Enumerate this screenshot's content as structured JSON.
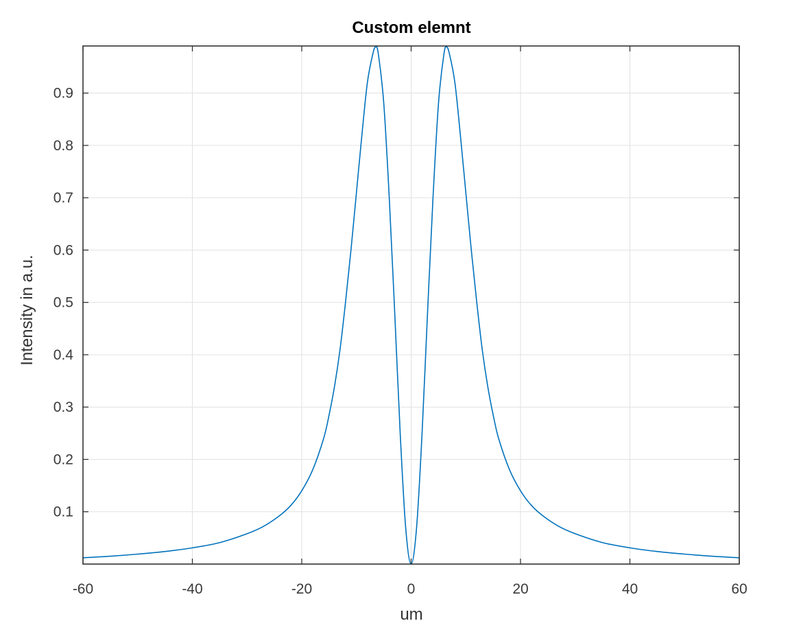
{
  "chart_data": {
    "type": "line",
    "title": "Custom elemnt",
    "xlabel": "um",
    "ylabel": "Intensity in a.u.",
    "xlim": [
      -60,
      60
    ],
    "ylim": [
      0.0,
      0.99
    ],
    "xticks": [
      "-60",
      "-40",
      "-20",
      "0",
      "20",
      "40",
      "60"
    ],
    "yticks": [
      "0.1",
      "0.2",
      "0.3",
      "0.4",
      "0.5",
      "0.6",
      "0.7",
      "0.8",
      "0.9"
    ],
    "grid": true,
    "line_color": "#0072BD",
    "series": [
      {
        "x": [
          -60,
          -55,
          -50,
          -45,
          -40,
          -35,
          -30,
          -27,
          -24,
          -22,
          -20,
          -18,
          -16,
          -15,
          -14,
          -13,
          -12,
          -11,
          -10,
          -9,
          -8,
          -7,
          -6.5,
          -6,
          -5,
          -4,
          -3,
          -2,
          -1,
          0,
          1,
          2,
          3,
          4,
          5,
          6,
          6.5,
          7,
          8,
          9,
          10,
          11,
          12,
          13,
          14,
          15,
          16,
          18,
          20,
          22,
          24,
          27,
          30,
          35,
          40,
          45,
          50,
          55,
          60
        ],
        "y": [
          0.012,
          0.015,
          0.019,
          0.024,
          0.031,
          0.041,
          0.058,
          0.072,
          0.093,
          0.112,
          0.14,
          0.18,
          0.24,
          0.285,
          0.34,
          0.41,
          0.5,
          0.6,
          0.71,
          0.82,
          0.92,
          0.975,
          0.988,
          0.975,
          0.88,
          0.7,
          0.48,
          0.25,
          0.07,
          0.0,
          0.07,
          0.25,
          0.48,
          0.7,
          0.88,
          0.975,
          0.988,
          0.975,
          0.92,
          0.82,
          0.71,
          0.6,
          0.5,
          0.41,
          0.34,
          0.285,
          0.24,
          0.18,
          0.14,
          0.112,
          0.093,
          0.072,
          0.058,
          0.041,
          0.031,
          0.024,
          0.019,
          0.015,
          0.012
        ]
      }
    ]
  }
}
